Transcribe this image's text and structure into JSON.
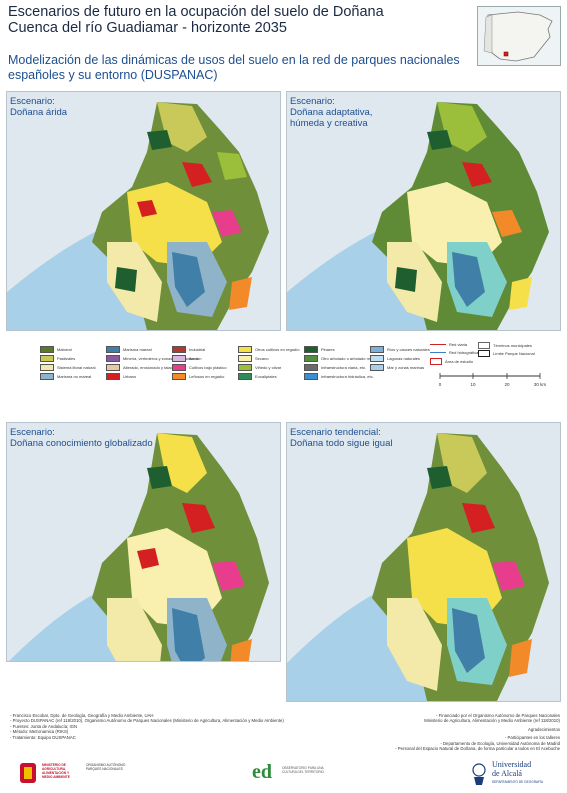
{
  "header": {
    "title_line1": "Escenarios de futuro en la ocupación del suelo de Doñana",
    "title_line2": "Cuenca del río Guadiamar - horizonte 2035",
    "subtitle_line1": "Modelización de las dinámicas de usos del suelo en la red de parques nacionales",
    "subtitle_line2": "españoles y su entorno (DUSPANAC)"
  },
  "panels": [
    {
      "label_line1": "Escenario:",
      "label_line2": "Doñana árida",
      "label_line3": ""
    },
    {
      "label_line1": "Escenario:",
      "label_line2": "Doñana adaptativa,",
      "label_line3": "húmeda y creativa"
    },
    {
      "label_line1": "Escenario:",
      "label_line2": "Doñana conocimiento globalizado",
      "label_line3": ""
    },
    {
      "label_line1": "Escenario tendencial:",
      "label_line2": "Doñana todo sigue igual",
      "label_line3": ""
    }
  ],
  "legend": {
    "items": [
      {
        "label": "Matorral",
        "color": "#5a7a2a"
      },
      {
        "label": "Pastizales",
        "color": "#c9c95a"
      },
      {
        "label": "Sistema litoral natural",
        "color": "#f3e9a8"
      },
      {
        "label": "Marisma no mareal",
        "color": "#8fb4c9"
      },
      {
        "label": "Marisma mareal",
        "color": "#3f7fa8"
      },
      {
        "label": "Minería, vertederos y zonas en construcción",
        "color": "#8a5aa0"
      },
      {
        "label": "Alterado, erosionado y talado",
        "color": "#e9c9a0"
      },
      {
        "label": "Urbano",
        "color": "#d42020"
      },
      {
        "label": "Industrial",
        "color": "#b03a2e"
      },
      {
        "label": "Arroz",
        "color": "#d9b8e0"
      },
      {
        "label": "Cultivos bajo plástico",
        "color": "#e83c8c"
      },
      {
        "label": "Leñosos en regadío",
        "color": "#f28a2a"
      },
      {
        "label": "Otros cultivos en regadío",
        "color": "#f6e04a"
      },
      {
        "label": "Secano",
        "color": "#f9f0b0"
      },
      {
        "label": "Viñedo y olivar",
        "color": "#9bbf3a"
      },
      {
        "label": "Eucaliptales",
        "color": "#2e8b57"
      },
      {
        "label": "Pinares",
        "color": "#1f5f2f"
      },
      {
        "label": "Otro arbolado o arbolado mixto",
        "color": "#4f8f3f"
      },
      {
        "label": "Infraestructura viaria, etc.",
        "color": "#6a6a6a"
      },
      {
        "label": "Infraestructura hidráulica, etc.",
        "color": "#3a8fd0"
      },
      {
        "label": "Ríos y cauces naturales",
        "color": "#7fb0d8"
      },
      {
        "label": "Lagunas naturales",
        "color": "#bfe0f0"
      },
      {
        "label": "Mar y zonas marinas",
        "color": "#a8d0e8"
      }
    ],
    "lines": [
      {
        "label": "Red viaria",
        "color": "#d42020"
      },
      {
        "label": "Red hidrográfica",
        "color": "#3a7fd0"
      },
      {
        "label": "Área de estudio",
        "color": "#d42020"
      },
      {
        "label": "Términos municipales",
        "color": "#666666"
      },
      {
        "label": "Límite Parque Nacional",
        "color": "#222222"
      }
    ],
    "scale": {
      "labels": [
        "0",
        "10",
        "20",
        "30 km"
      ]
    }
  },
  "credits_left": [
    "- Francisco Escobar, Dpto. de Geología, Geografía y Medio Ambiente, UAH",
    "- Proyecto DUSPANAC (ref 118/2010), Organismo Autónomo de  Parques Nacionales (Ministerio de Agricultura, Alimentación y  Medio Ambiente)",
    "- Fuentes: Junta de Andalucía; IGN",
    "- Método: Metronamica (RIKS)",
    "- Tratamiento: Equipo DUSPANAC"
  ],
  "credits_right": [
    "- Financiado por el Organismo Autónomo de Parques Nacionales",
    "Ministerio de Agricultura, Alimentación y Medio Ambiente (ref 118/2010)",
    "Agradecimientos",
    "- Participantes en los talleres",
    "- Departamento de Ecología, Universidad Autónoma de Madrid",
    "- Personal del Espacio Natural de Doñana, de forma particular a   todos en El Acebuche"
  ],
  "logos": {
    "ministerio": "MINISTERIO DE AGRICULTURA, ALIMENTACIÓN Y MEDIO AMBIENTE",
    "ministerio_sub": "ORGANISMO AUTÓNOMO PARQUES NACIONALES",
    "ed_mark": "ed",
    "ed_text": "OBSERVATORIO PARA UNA CULTURA DEL TERRITORIO",
    "uah_line1": "Universidad",
    "uah_line2": "de Alcalá",
    "uah_line3": "DEPARTAMENTO DE GEOGRAFÍA"
  }
}
